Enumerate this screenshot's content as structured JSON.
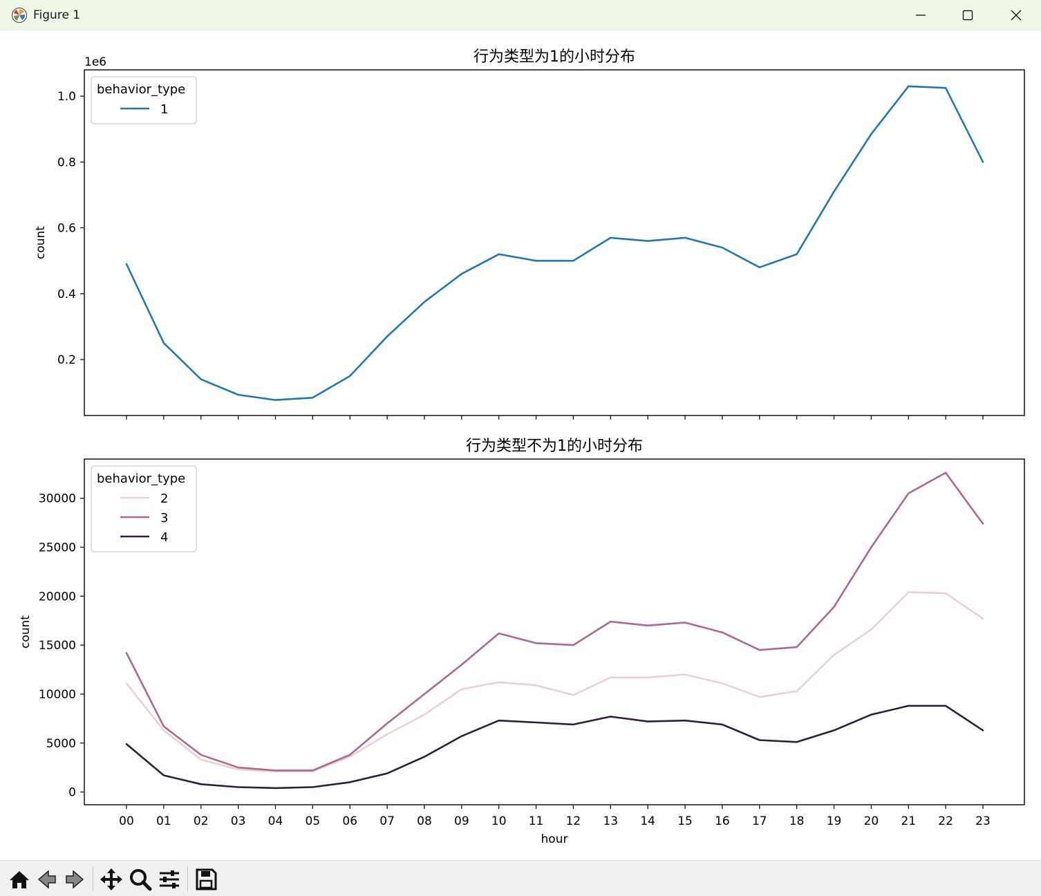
{
  "window": {
    "title": "Figure 1",
    "buttons": {
      "minimize_icon": "minimize-icon",
      "maximize_icon": "maximize-icon",
      "close_icon": "close-icon"
    }
  },
  "toolbar": {
    "icons": [
      "home-icon",
      "back-arrow-icon",
      "forward-arrow-icon",
      "pan-icon",
      "zoom-icon",
      "configure-subplots-icon",
      "save-icon"
    ]
  },
  "chart_data": [
    {
      "type": "line",
      "title": "行为类型为1的小时分布",
      "xlabel": "",
      "ylabel": "count",
      "offset_label": "1e6",
      "categories": [
        "00",
        "01",
        "02",
        "03",
        "04",
        "05",
        "06",
        "07",
        "08",
        "09",
        "10",
        "11",
        "12",
        "13",
        "14",
        "15",
        "16",
        "17",
        "18",
        "19",
        "20",
        "21",
        "22",
        "23"
      ],
      "ylim": [
        0.03,
        1.08
      ],
      "yticks": [
        0.2,
        0.4,
        0.6,
        0.8,
        1.0
      ],
      "ytick_labels": [
        "0.2",
        "0.4",
        "0.6",
        "0.8",
        "1.0"
      ],
      "show_xtick_labels": false,
      "legend": {
        "title": "behavior_type",
        "placement": "upper-left"
      },
      "series": [
        {
          "name": "1",
          "color": "#1f77b4",
          "values": [
            0.49,
            0.25,
            0.14,
            0.093,
            0.077,
            0.084,
            0.15,
            0.27,
            0.375,
            0.46,
            0.52,
            0.5,
            0.5,
            0.57,
            0.56,
            0.57,
            0.54,
            0.48,
            0.52,
            0.71,
            0.885,
            1.03,
            1.025,
            0.8
          ]
        }
      ]
    },
    {
      "type": "line",
      "title": "行为类型不为1的小时分布",
      "xlabel": "hour",
      "ylabel": "count",
      "categories": [
        "00",
        "01",
        "02",
        "03",
        "04",
        "05",
        "06",
        "07",
        "08",
        "09",
        "10",
        "11",
        "12",
        "13",
        "14",
        "15",
        "16",
        "17",
        "18",
        "19",
        "20",
        "21",
        "22",
        "23"
      ],
      "ylim": [
        -1300,
        34000
      ],
      "yticks": [
        0,
        5000,
        10000,
        15000,
        20000,
        25000,
        30000
      ],
      "ytick_labels": [
        "0",
        "5000",
        "10000",
        "15000",
        "20000",
        "25000",
        "30000"
      ],
      "show_xtick_labels": true,
      "legend": {
        "title": "behavior_type",
        "placement": "upper-left"
      },
      "series": [
        {
          "name": "2",
          "color": "#ecd0cd",
          "values": [
            11100,
            6300,
            3300,
            2300,
            2100,
            2100,
            3600,
            5900,
            7900,
            10500,
            11200,
            10900,
            9900,
            11700,
            11700,
            12000,
            11100,
            9700,
            10300,
            14000,
            16600,
            20400,
            20300,
            17700
          ]
        },
        {
          "name": "3",
          "color": "#ae6792",
          "values": [
            14200,
            6700,
            3800,
            2500,
            2200,
            2200,
            3800,
            7000,
            10000,
            13000,
            16200,
            15200,
            15000,
            17400,
            17000,
            17300,
            16300,
            14500,
            14800,
            18900,
            25000,
            30500,
            32600,
            27400
          ]
        },
        {
          "name": "4",
          "color": "#2d1e3e",
          "values": [
            4900,
            1700,
            800,
            500,
            400,
            500,
            1000,
            1900,
            3600,
            5700,
            7300,
            7100,
            6900,
            7700,
            7200,
            7300,
            6900,
            5300,
            5100,
            6300,
            7900,
            8800,
            8800,
            6300
          ]
        }
      ]
    }
  ]
}
